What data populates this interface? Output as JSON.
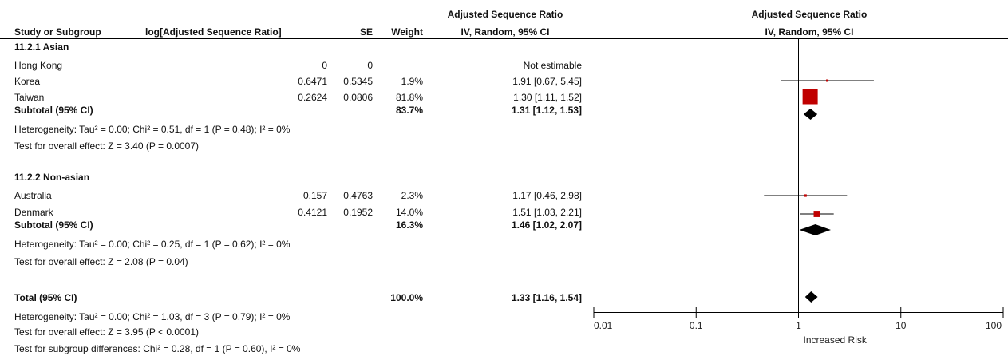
{
  "header": {
    "col_study": "Study or Subgroup",
    "col_logratio": "log[Adjusted Sequence Ratio]",
    "col_se": "SE",
    "col_weight": "Weight",
    "col_effect_title": "Adjusted Sequence Ratio",
    "col_effect_sub": "IV, Random, 95% CI",
    "plot_title": "Adjusted Sequence Ratio",
    "plot_sub": "IV, Random, 95% CI"
  },
  "groups": [
    {
      "title": "11.2.1 Asian",
      "studies": [
        {
          "name": "Hong Kong",
          "log": "0",
          "se": "0",
          "weight": "",
          "ci": "Not estimable"
        },
        {
          "name": "Korea",
          "log": "0.6471",
          "se": "0.5345",
          "weight": "1.9%",
          "ci": "1.91 [0.67, 5.45]"
        },
        {
          "name": "Taiwan",
          "log": "0.2624",
          "se": "0.0806",
          "weight": "81.8%",
          "ci": "1.30 [1.11, 1.52]"
        }
      ],
      "subtotal": {
        "label": "Subtotal (95% CI)",
        "weight": "83.7%",
        "ci": "1.31 [1.12, 1.53]"
      },
      "heterogeneity": "Heterogeneity: Tau² = 0.00; Chi² = 0.51, df = 1 (P = 0.48); I² = 0%",
      "overall": "Test for overall effect: Z = 3.40 (P = 0.0007)"
    },
    {
      "title": "11.2.2 Non-asian",
      "studies": [
        {
          "name": "Australia",
          "log": "0.157",
          "se": "0.4763",
          "weight": "2.3%",
          "ci": "1.17 [0.46, 2.98]"
        },
        {
          "name": "Denmark",
          "log": "0.4121",
          "se": "0.1952",
          "weight": "14.0%",
          "ci": "1.51 [1.03, 2.21]"
        }
      ],
      "subtotal": {
        "label": "Subtotal (95% CI)",
        "weight": "16.3%",
        "ci": "1.46 [1.02, 2.07]"
      },
      "heterogeneity": "Heterogeneity: Tau² = 0.00; Chi² = 0.25, df = 1 (P = 0.62); I² = 0%",
      "overall": "Test for overall effect: Z = 2.08 (P = 0.04)"
    }
  ],
  "total": {
    "label": "Total (95% CI)",
    "weight": "100.0%",
    "ci": "1.33 [1.16, 1.54]",
    "heterogeneity": "Heterogeneity: Tau² = 0.00; Chi² = 1.03, df = 3 (P = 0.79); I² = 0%",
    "overall": "Test for overall effect: Z = 3.95 (P < 0.0001)",
    "subgroup": "Test for subgroup differences: Chi² = 0.28, df = 1 (P = 0.60), I² = 0%"
  },
  "chart_data": {
    "type": "forest",
    "x_scale": "log",
    "xlim": [
      0.01,
      100
    ],
    "x_ticks": [
      "0.01",
      "0.1",
      "1",
      "10",
      "100"
    ],
    "x_ticks_values": [
      0.01,
      0.1,
      1,
      10,
      100
    ],
    "reference_value": 1,
    "xlabel_right": "Increased Risk",
    "colors": {
      "study_marker": "#c00000",
      "summary": "#000000",
      "line": "#000000"
    },
    "studies": [
      {
        "name": "Korea",
        "estimate": 1.91,
        "lower": 0.67,
        "upper": 5.45,
        "weight": 1.9
      },
      {
        "name": "Taiwan",
        "estimate": 1.3,
        "lower": 1.11,
        "upper": 1.52,
        "weight": 81.8
      },
      {
        "name": "Australia",
        "estimate": 1.17,
        "lower": 0.46,
        "upper": 2.98,
        "weight": 2.3
      },
      {
        "name": "Denmark",
        "estimate": 1.51,
        "lower": 1.03,
        "upper": 2.21,
        "weight": 14.0
      }
    ],
    "summaries": [
      {
        "name": "Subtotal 11.2.1 Asian",
        "estimate": 1.31,
        "lower": 1.12,
        "upper": 1.53
      },
      {
        "name": "Subtotal 11.2.2 Non-asian",
        "estimate": 1.46,
        "lower": 1.02,
        "upper": 2.07
      },
      {
        "name": "Total",
        "estimate": 1.33,
        "lower": 1.16,
        "upper": 1.54
      }
    ]
  }
}
